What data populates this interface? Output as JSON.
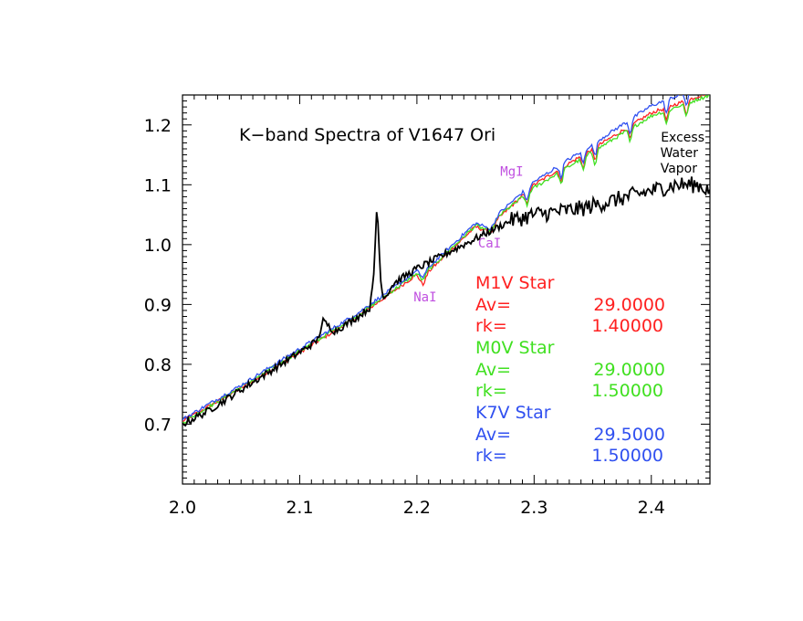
{
  "chart_data": {
    "type": "line",
    "title": "K−band Spectra of V1647 Ori",
    "xlabel": "",
    "ylabel": "",
    "xlim": [
      2.0,
      2.45
    ],
    "ylim": [
      0.6,
      1.25
    ],
    "x_ticks": [
      2.0,
      2.1,
      2.2,
      2.3,
      2.4
    ],
    "x_tick_labels": [
      "2.0",
      "2.1",
      "2.2",
      "2.3",
      "2.4"
    ],
    "y_ticks": [
      0.7,
      0.8,
      0.9,
      1.0,
      1.1,
      1.2
    ],
    "y_tick_labels": [
      "0.7",
      "0.8",
      "0.9",
      "1.0",
      "1.1",
      "1.2"
    ],
    "colors": {
      "object": "#000000",
      "m1v": "#ff2020",
      "m0v": "#40e020",
      "k7v": "#3050f0",
      "lines": "#c050e0"
    },
    "series": [
      {
        "name": "V1647 Ori",
        "color": "#000000",
        "x": [
          2.0,
          2.02,
          2.04,
          2.06,
          2.08,
          2.1,
          2.115,
          2.12,
          2.13,
          2.15,
          2.16,
          2.163,
          2.166,
          2.169,
          2.172,
          2.18,
          2.2,
          2.22,
          2.24,
          2.26,
          2.28,
          2.3,
          2.32,
          2.34,
          2.36,
          2.38,
          2.4,
          2.42,
          2.44,
          2.45
        ],
        "y": [
          0.7,
          0.72,
          0.745,
          0.77,
          0.795,
          0.82,
          0.84,
          0.872,
          0.855,
          0.88,
          0.895,
          0.94,
          1.073,
          0.94,
          0.91,
          0.935,
          0.96,
          0.98,
          1.0,
          1.02,
          1.04,
          1.05,
          1.055,
          1.06,
          1.07,
          1.08,
          1.09,
          1.1,
          1.1,
          1.09
        ]
      },
      {
        "name": "M1V Star",
        "color": "#ff2020",
        "Av": "29.0000",
        "rk": "1.40000",
        "x": [
          2.0,
          2.05,
          2.1,
          2.15,
          2.2,
          2.205,
          2.21,
          2.25,
          2.263,
          2.27,
          2.3,
          2.35,
          2.4,
          2.45
        ],
        "y": [
          0.705,
          0.76,
          0.82,
          0.88,
          0.95,
          0.932,
          0.955,
          1.03,
          1.02,
          1.045,
          1.1,
          1.16,
          1.22,
          1.255
        ]
      },
      {
        "name": "M0V Star",
        "color": "#40e020",
        "Av": "29.0000",
        "rk": "1.50000",
        "x": [
          2.0,
          2.05,
          2.1,
          2.15,
          2.2,
          2.205,
          2.21,
          2.25,
          2.263,
          2.27,
          2.3,
          2.35,
          2.4,
          2.45
        ],
        "y": [
          0.702,
          0.762,
          0.822,
          0.882,
          0.952,
          0.94,
          0.958,
          1.032,
          1.022,
          1.048,
          1.095,
          1.155,
          1.215,
          1.25
        ]
      },
      {
        "name": "K7V Star",
        "color": "#3050f0",
        "Av": "29.5000",
        "rk": "1.50000",
        "x": [
          2.0,
          2.05,
          2.1,
          2.15,
          2.2,
          2.205,
          2.21,
          2.25,
          2.263,
          2.27,
          2.3,
          2.35,
          2.4,
          2.45
        ],
        "y": [
          0.708,
          0.765,
          0.826,
          0.886,
          0.956,
          0.945,
          0.962,
          1.036,
          1.026,
          1.052,
          1.105,
          1.168,
          1.232,
          1.27
        ]
      }
    ],
    "line_ids": [
      {
        "label": "NaI",
        "x": 2.207,
        "y": 0.905
      },
      {
        "label": "CaI",
        "x": 2.262,
        "y": 0.995
      },
      {
        "label": "MgI",
        "x": 2.281,
        "y": 1.115
      }
    ],
    "annotation": {
      "lines": [
        "Excess",
        "Water",
        "Vapor"
      ],
      "x": 2.44,
      "y": 1.2
    },
    "legend": {
      "placement": "lower-right",
      "entries": [
        {
          "name": "M1V Star",
          "av_label": "Av=",
          "av": "29.0000",
          "rk_label": "rk=",
          "rk": "1.40000",
          "color": "#ff2020"
        },
        {
          "name": "M0V Star",
          "av_label": "Av=",
          "av": "29.0000",
          "rk_label": "rk=",
          "rk": "1.50000",
          "color": "#40e020"
        },
        {
          "name": "K7V Star",
          "av_label": "Av=",
          "av": "29.5000",
          "rk_label": "rk=",
          "rk": "1.50000",
          "color": "#3050f0"
        }
      ]
    }
  }
}
